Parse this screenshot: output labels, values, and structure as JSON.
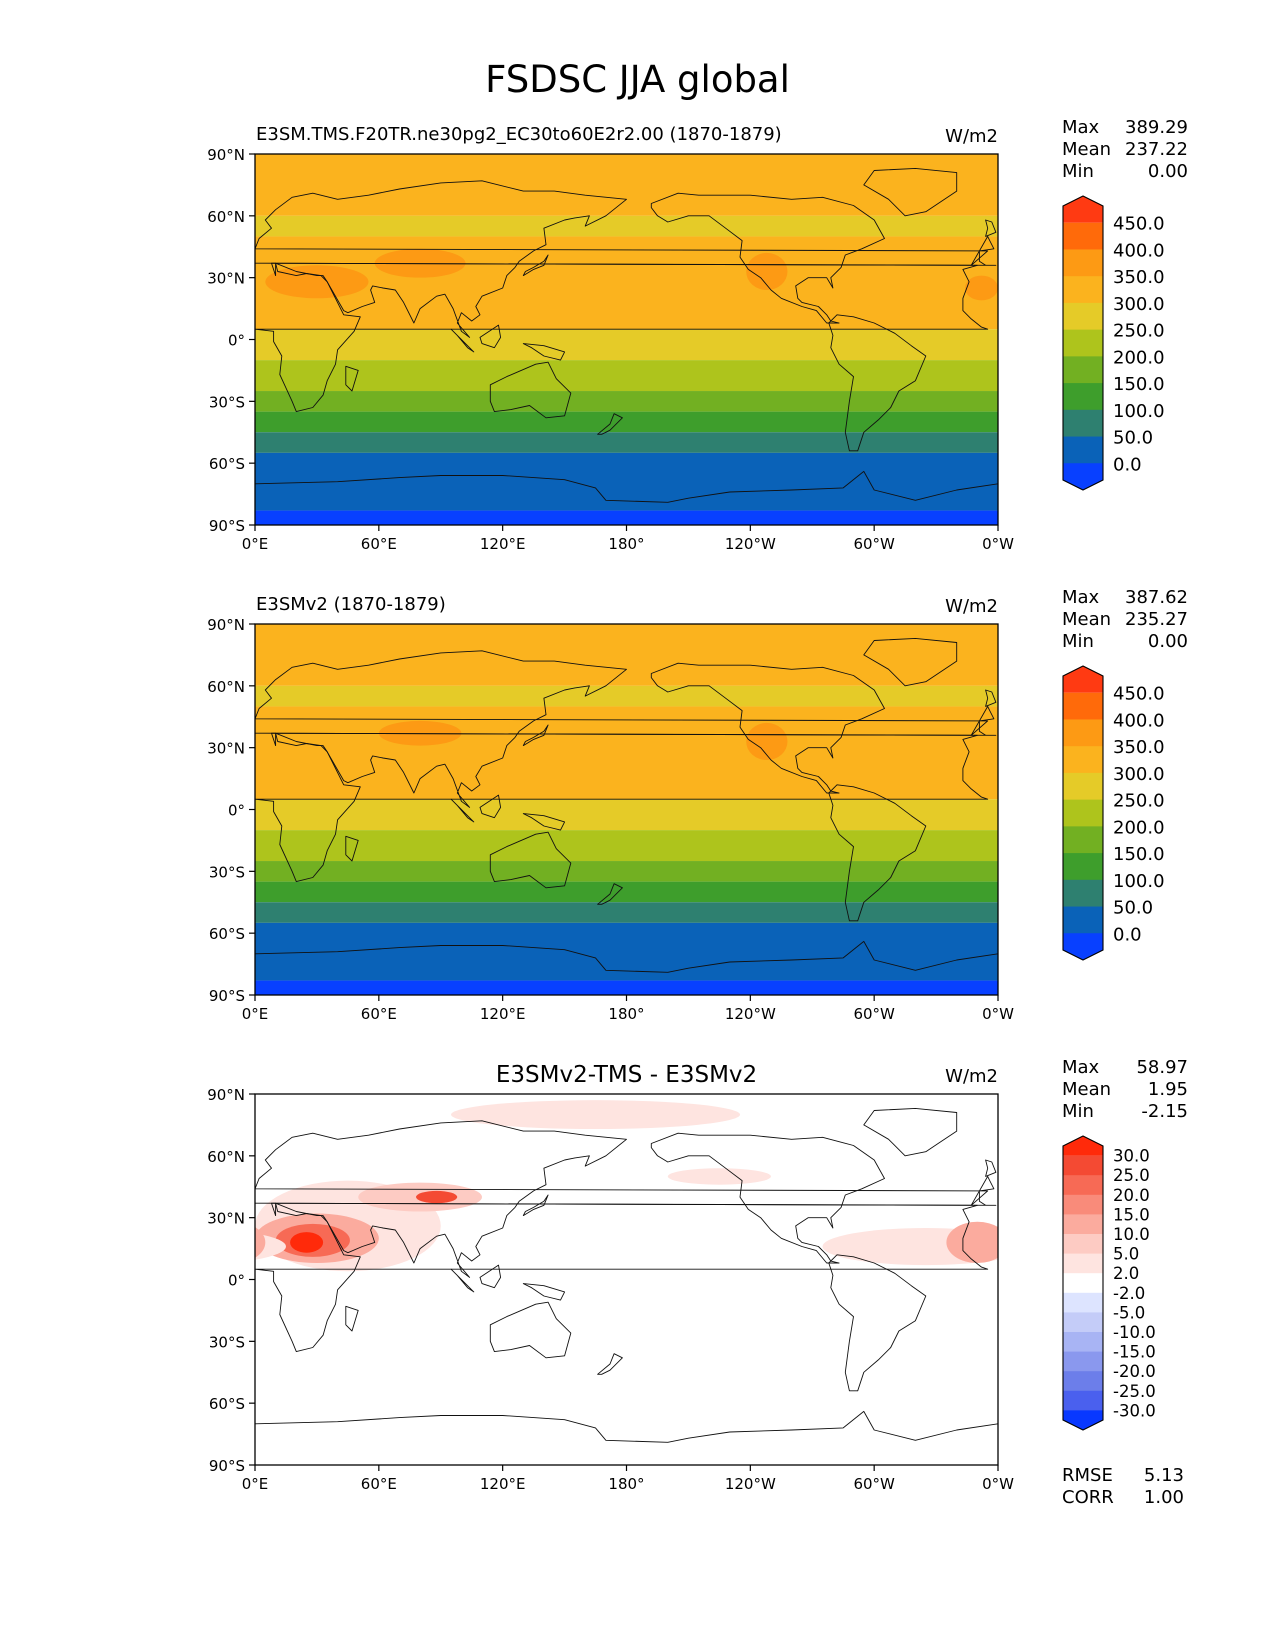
{
  "figure": {
    "title": "FSDSC JJA global"
  },
  "chart_data": [
    {
      "type": "heatmap",
      "subtitle": "E3SM.TMS.F20TR.ne30pg2_EC30to60E2r2.00 (1870-1879)",
      "units": "W/m2",
      "stats": [
        {
          "label": "Max",
          "value": "389.29"
        },
        {
          "label": "Mean",
          "value": "237.22"
        },
        {
          "label": "Min",
          "value": "0.00"
        }
      ],
      "colorbar": {
        "ticks": [
          "450.0",
          "400.0",
          "350.0",
          "300.0",
          "250.0",
          "200.0",
          "150.0",
          "100.0",
          "50.0",
          "0.0"
        ],
        "colors": [
          "#ff3a12",
          "#ff6a0a",
          "#fd9a14",
          "#fbb31e",
          "#e5cb28",
          "#aec41c",
          "#72b022",
          "#3e9e2c",
          "#2e8070",
          "#0a62b8",
          "#0840ff"
        ]
      },
      "bands": [
        {
          "lat": [
            90,
            60
          ],
          "color": "#fbb31e"
        },
        {
          "lat": [
            60,
            50
          ],
          "color": "#e5cb28"
        },
        {
          "lat": [
            50,
            5
          ],
          "color": "#fbb31e"
        },
        {
          "lat": [
            5,
            -10
          ],
          "color": "#e5cb28"
        },
        {
          "lat": [
            -10,
            -25
          ],
          "color": "#aec41c"
        },
        {
          "lat": [
            -25,
            -35
          ],
          "color": "#72b022"
        },
        {
          "lat": [
            -35,
            -45
          ],
          "color": "#3e9e2c"
        },
        {
          "lat": [
            -45,
            -55
          ],
          "color": "#2e8070"
        },
        {
          "lat": [
            -55,
            -83
          ],
          "color": "#0a62b8"
        },
        {
          "lat": [
            -83,
            -90
          ],
          "color": "#0840ff"
        }
      ],
      "blobs": [
        {
          "lon": 30,
          "lat": 28,
          "rlon": 25,
          "rlat": 8,
          "color": "#fd9a14"
        },
        {
          "lon": 80,
          "lat": 37,
          "rlon": 22,
          "rlat": 7,
          "color": "#fd9a14"
        },
        {
          "lon": 248,
          "lat": 33,
          "rlon": 10,
          "rlat": 9,
          "color": "#fd9a14"
        },
        {
          "lon": 352,
          "lat": 25,
          "rlon": 8,
          "rlat": 6,
          "color": "#fd9a14"
        }
      ],
      "xticks": [
        "0°E",
        "60°E",
        "120°E",
        "180°",
        "120°W",
        "60°W",
        "0°W"
      ],
      "yticks": [
        "90°N",
        "60°N",
        "30°N",
        "0°",
        "30°S",
        "60°S",
        "90°S"
      ]
    },
    {
      "type": "heatmap",
      "subtitle": "E3SMv2 (1870-1879)",
      "units": "W/m2",
      "stats": [
        {
          "label": "Max",
          "value": "387.62"
        },
        {
          "label": "Mean",
          "value": "235.27"
        },
        {
          "label": "Min",
          "value": "0.00"
        }
      ],
      "colorbar": {
        "ticks": [
          "450.0",
          "400.0",
          "350.0",
          "300.0",
          "250.0",
          "200.0",
          "150.0",
          "100.0",
          "50.0",
          "0.0"
        ],
        "colors": [
          "#ff3a12",
          "#ff6a0a",
          "#fd9a14",
          "#fbb31e",
          "#e5cb28",
          "#aec41c",
          "#72b022",
          "#3e9e2c",
          "#2e8070",
          "#0a62b8",
          "#0840ff"
        ]
      },
      "bands": [
        {
          "lat": [
            90,
            60
          ],
          "color": "#fbb31e"
        },
        {
          "lat": [
            60,
            50
          ],
          "color": "#e5cb28"
        },
        {
          "lat": [
            50,
            5
          ],
          "color": "#fbb31e"
        },
        {
          "lat": [
            5,
            -10
          ],
          "color": "#e5cb28"
        },
        {
          "lat": [
            -10,
            -25
          ],
          "color": "#aec41c"
        },
        {
          "lat": [
            -25,
            -35
          ],
          "color": "#72b022"
        },
        {
          "lat": [
            -35,
            -45
          ],
          "color": "#3e9e2c"
        },
        {
          "lat": [
            -45,
            -55
          ],
          "color": "#2e8070"
        },
        {
          "lat": [
            -55,
            -83
          ],
          "color": "#0a62b8"
        },
        {
          "lat": [
            -83,
            -90
          ],
          "color": "#0840ff"
        }
      ],
      "blobs": [
        {
          "lon": 80,
          "lat": 37,
          "rlon": 20,
          "rlat": 6,
          "color": "#fd9a14"
        },
        {
          "lon": 248,
          "lat": 33,
          "rlon": 10,
          "rlat": 9,
          "color": "#fd9a14"
        }
      ],
      "xticks": [
        "0°E",
        "60°E",
        "120°E",
        "180°",
        "120°W",
        "60°W",
        "0°W"
      ],
      "yticks": [
        "90°N",
        "60°N",
        "30°N",
        "0°",
        "30°S",
        "60°S",
        "90°S"
      ]
    },
    {
      "type": "heatmap",
      "subtitle": "E3SMv2-TMS - E3SMv2",
      "units": "W/m2",
      "stats": [
        {
          "label": "Max",
          "value": "58.97"
        },
        {
          "label": "Mean",
          "value": "1.95"
        },
        {
          "label": "Min",
          "value": "-2.15"
        }
      ],
      "extra_stats": [
        {
          "label": "RMSE",
          "value": "5.13"
        },
        {
          "label": "CORR",
          "value": "1.00"
        }
      ],
      "colorbar": {
        "ticks": [
          "30.0",
          "25.0",
          "20.0",
          "15.0",
          "10.0",
          "5.0",
          "2.0",
          "-2.0",
          "-5.0",
          "-10.0",
          "-15.0",
          "-20.0",
          "-25.0",
          "-30.0"
        ],
        "colors": [
          "#ff2a0a",
          "#f44a33",
          "#f76a55",
          "#f98b7a",
          "#fbab9e",
          "#fdcbc3",
          "#fee4e0",
          "#ffffff",
          "#dde4ff",
          "#c4ccf8",
          "#a8b4f4",
          "#8a98ee",
          "#6c7eea",
          "#4a60ee",
          "#0838ff"
        ]
      },
      "bands": [
        {
          "lat": [
            90,
            -90
          ],
          "color": "#ffffff"
        }
      ],
      "blobs": [
        {
          "lon": 165,
          "lat": 80,
          "rlon": 70,
          "rlat": 7,
          "color": "#fee4e0"
        },
        {
          "lon": 45,
          "lat": 26,
          "rlon": 45,
          "rlat": 22,
          "color": "#fee4e0"
        },
        {
          "lon": 80,
          "lat": 40,
          "rlon": 30,
          "rlat": 7,
          "color": "#fdcbc3"
        },
        {
          "lon": 30,
          "lat": 20,
          "rlon": 30,
          "rlat": 12,
          "color": "#fbab9e"
        },
        {
          "lon": 28,
          "lat": 19,
          "rlon": 18,
          "rlat": 8,
          "color": "#f76a55"
        },
        {
          "lon": 25,
          "lat": 18,
          "rlon": 8,
          "rlat": 5,
          "color": "#ff2a0a"
        },
        {
          "lon": 88,
          "lat": 40,
          "rlon": 10,
          "rlat": 3,
          "color": "#f44a33"
        },
        {
          "lon": 325,
          "lat": 16,
          "rlon": 50,
          "rlat": 9,
          "color": "#fee4e0"
        },
        {
          "lon": 350,
          "lat": 18,
          "rlon": 15,
          "rlat": 10,
          "color": "#fbab9e"
        },
        {
          "lon": 225,
          "lat": 50,
          "rlon": 25,
          "rlat": 4,
          "color": "#fee4e0"
        }
      ],
      "xticks": [
        "0°E",
        "60°E",
        "120°E",
        "180°",
        "120°W",
        "60°W",
        "0°W"
      ],
      "yticks": [
        "90°N",
        "60°N",
        "30°N",
        "0°",
        "30°S",
        "60°S",
        "90°S"
      ]
    }
  ]
}
